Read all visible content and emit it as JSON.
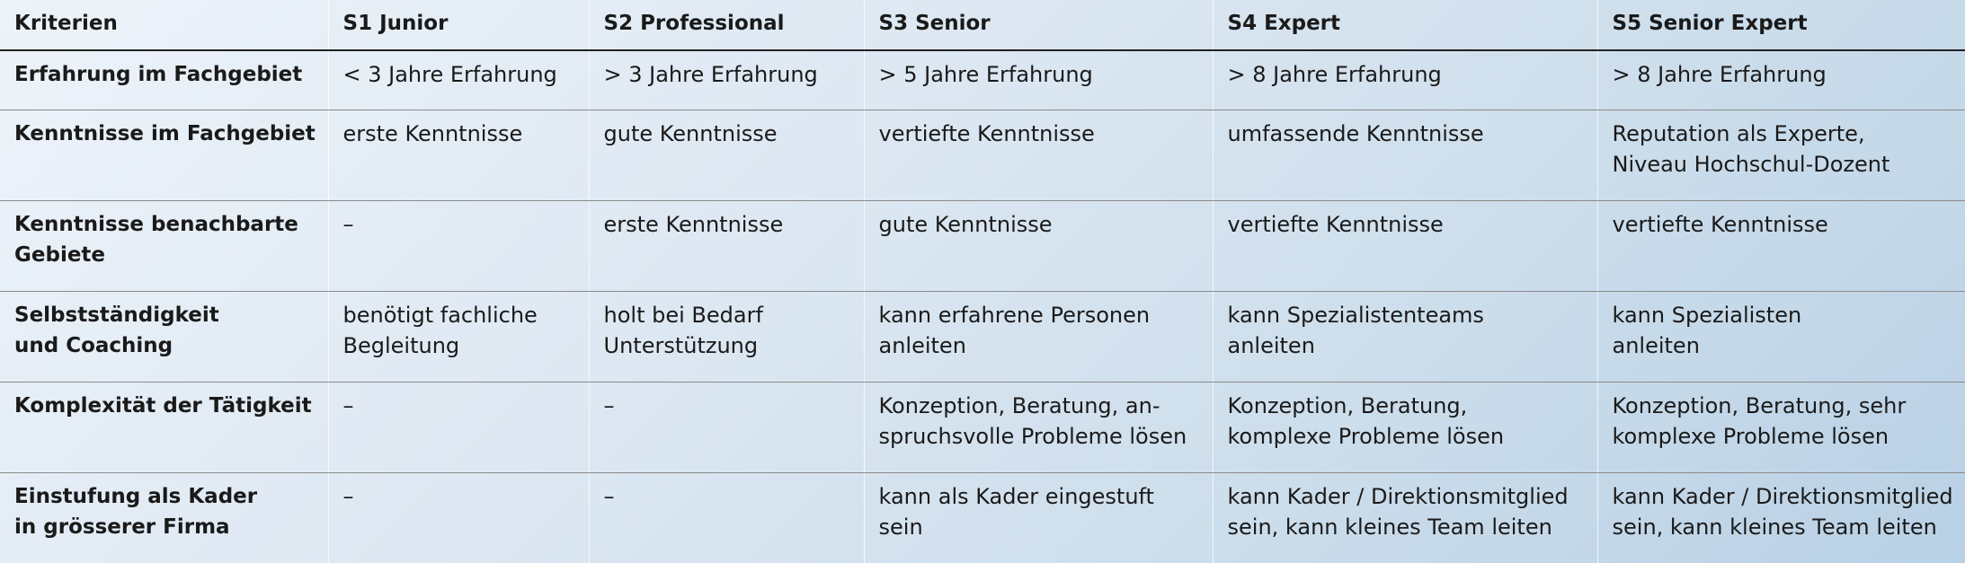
{
  "table": {
    "headers": [
      "Kriterien",
      "S1 Junior",
      "S2 Professional",
      "S3 Senior",
      "S4 Expert",
      "S5 Senior Expert"
    ],
    "rows": [
      {
        "criterion": [
          "Erfahrung im Fachgebiet"
        ],
        "cells": [
          [
            "< 3 Jahre Erfahrung"
          ],
          [
            "> 3 Jahre Erfahrung"
          ],
          [
            "> 5 Jahre Erfahrung"
          ],
          [
            "> 8 Jahre Erfahrung"
          ],
          [
            "> 8 Jahre Erfahrung"
          ]
        ]
      },
      {
        "criterion": [
          "Kenntnisse im Fachgebiet"
        ],
        "cells": [
          [
            "erste Kenntnisse"
          ],
          [
            "gute Kenntnisse"
          ],
          [
            "vertiefte Kenntnisse"
          ],
          [
            "umfassende Kenntnisse"
          ],
          [
            "Reputation als Experte,",
            "Niveau Hochschul-Dozent"
          ]
        ]
      },
      {
        "criterion": [
          "Kenntnisse benachbarte",
          "Gebiete"
        ],
        "cells": [
          [
            "–"
          ],
          [
            "erste Kenntnisse"
          ],
          [
            "gute Kenntnisse"
          ],
          [
            "vertiefte Kenntnisse"
          ],
          [
            "vertiefte Kenntnisse"
          ]
        ]
      },
      {
        "criterion": [
          "Selbstständigkeit",
          "und Coaching"
        ],
        "cells": [
          [
            "benötigt fachliche",
            "Begleitung"
          ],
          [
            "holt bei Bedarf",
            "Unterstützung"
          ],
          [
            "kann erfahrene Personen",
            "anleiten"
          ],
          [
            "kann Spezialistenteams",
            "anleiten"
          ],
          [
            "kann Spezialisten",
            "anleiten"
          ]
        ]
      },
      {
        "criterion": [
          "Komplexität der Tätigkeit"
        ],
        "cells": [
          [
            "–"
          ],
          [
            "–"
          ],
          [
            "Konzeption, Beratung, an-",
            "spruchsvolle Probleme lösen"
          ],
          [
            "Konzeption, Beratung,",
            "komplexe Probleme lösen"
          ],
          [
            "Konzeption, Beratung, sehr",
            "komplexe Probleme lösen"
          ]
        ]
      },
      {
        "criterion": [
          "Einstufung als Kader",
          "in grösserer Firma"
        ],
        "cells": [
          [
            "–"
          ],
          [
            "–"
          ],
          [
            "kann als Kader eingestuft",
            "sein"
          ],
          [
            "kann Kader / Direktionsmitglied",
            "sein, kann kleines Team leiten"
          ],
          [
            "kann Kader / Direktionsmitglied",
            "sein, kann kleines Team leiten"
          ]
        ]
      }
    ]
  }
}
